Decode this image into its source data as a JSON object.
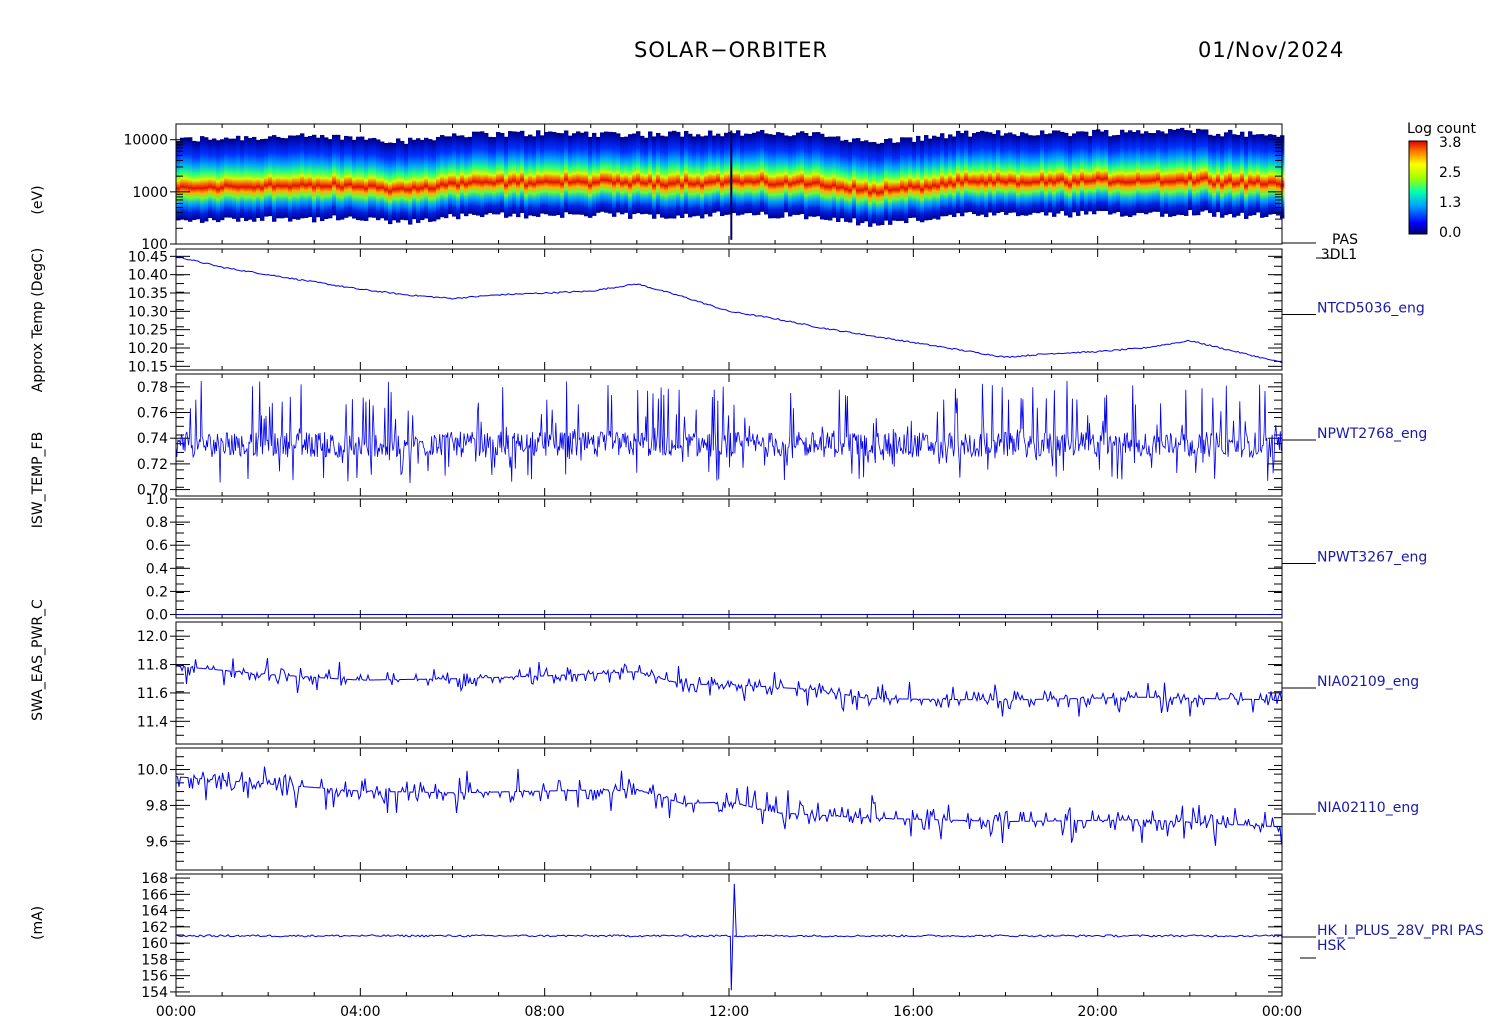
{
  "header": {
    "mission": "SOLAR−ORBITER",
    "date": "01/Nov/2024"
  },
  "chart_data": [
    {
      "type": "heatmap",
      "name": "PAS 3DL1",
      "label_lines": [
        "PAS",
        "3DL1"
      ],
      "y_scale": "log",
      "ylim": [
        100,
        20000
      ],
      "y_ticks": [
        {
          "v": 100,
          "label": "100"
        },
        {
          "v": 1000,
          "label": "1000"
        },
        {
          "v": 10000,
          "label": "10000"
        }
      ],
      "colorbar": {
        "title": "Log count",
        "min": 0.0,
        "max": 3.8,
        "ticks": [
          "3.8",
          "2.5",
          "1.3",
          "0.0"
        ]
      },
      "peak_energy_profile": [
        [
          0,
          1000
        ],
        [
          2,
          1150
        ],
        [
          4,
          1100
        ],
        [
          5,
          950
        ],
        [
          6,
          1250
        ],
        [
          8,
          1350
        ],
        [
          10,
          1300
        ],
        [
          12,
          1350
        ],
        [
          14,
          1250
        ],
        [
          15,
          880
        ],
        [
          16,
          1050
        ],
        [
          17,
          1300
        ],
        [
          20,
          1400
        ],
        [
          22,
          1500
        ],
        [
          24,
          1200
        ]
      ]
    },
    {
      "type": "line",
      "name": "NTCD5036_eng",
      "ylim": [
        10.14,
        10.47
      ],
      "y_ticks": [
        "10.45",
        "10.40",
        "10.35",
        "10.30",
        "10.25",
        "10.20",
        "10.15"
      ],
      "x": [
        0,
        1,
        2,
        3,
        4,
        5,
        6,
        7,
        8,
        9,
        10,
        11,
        12,
        13,
        14,
        15,
        16,
        17,
        18,
        19,
        20,
        21,
        22,
        23,
        24
      ],
      "y": [
        10.45,
        10.42,
        10.4,
        10.38,
        10.36,
        10.345,
        10.335,
        10.345,
        10.35,
        10.355,
        10.375,
        10.34,
        10.3,
        10.28,
        10.255,
        10.235,
        10.215,
        10.195,
        10.175,
        10.185,
        10.19,
        10.2,
        10.22,
        10.19,
        10.16
      ]
    },
    {
      "type": "line",
      "name": "NPWT2768_eng",
      "ylim": [
        0.695,
        0.79
      ],
      "y_ticks": [
        "0.78",
        "0.76",
        "0.74",
        "0.72",
        "0.70"
      ],
      "mean": 0.735,
      "noise_range": [
        0.705,
        0.785
      ]
    },
    {
      "type": "line",
      "name": "NPWT3267_eng",
      "ylim": [
        -0.03,
        1.0
      ],
      "y_ticks": [
        "1.0",
        "0.8",
        "0.6",
        "0.4",
        "0.2",
        "0.0"
      ],
      "constant_value": 0.0
    },
    {
      "type": "line",
      "name": "NIA02109_eng",
      "ylim": [
        11.24,
        12.1
      ],
      "y_ticks": [
        "12.0",
        "11.8",
        "11.6",
        "11.4"
      ],
      "x": [
        0,
        2,
        4,
        6,
        8,
        10,
        11,
        12,
        14,
        15,
        18,
        21,
        24
      ],
      "y": [
        11.79,
        11.73,
        11.69,
        11.7,
        11.72,
        11.75,
        11.66,
        11.66,
        11.62,
        11.56,
        11.55,
        11.57,
        11.55
      ]
    },
    {
      "type": "line",
      "name": "NIA02110_eng",
      "ylim": [
        9.44,
        10.12
      ],
      "y_ticks": [
        "10.0",
        "9.8",
        "9.6"
      ],
      "x": [
        0,
        2,
        4,
        6,
        8,
        10,
        11,
        12,
        13,
        15,
        18,
        21,
        24
      ],
      "y": [
        9.96,
        9.92,
        9.88,
        9.87,
        9.88,
        9.89,
        9.81,
        9.82,
        9.76,
        9.73,
        9.71,
        9.72,
        9.68
      ]
    },
    {
      "type": "line",
      "name": "HK_I_PLUS_28V_PRI PAS HSK",
      "label_lines": [
        "HK_I_PLUS_28V_PRI PAS",
        "HSK"
      ],
      "ylim": [
        153.5,
        168.5
      ],
      "y_ticks": [
        "168",
        "166",
        "164",
        "162",
        "160",
        "158",
        "156",
        "154"
      ],
      "baseline": 160.9,
      "spike": {
        "time": 12.05,
        "min": 154.2,
        "max": 167.3
      }
    }
  ],
  "x_axis": {
    "range": [
      0,
      24
    ],
    "tick_labels": [
      "00:00",
      "04:00",
      "08:00",
      "12:00",
      "16:00",
      "20:00",
      "00:00"
    ]
  },
  "y_axis_overlay": [
    "(eV)",
    "Approx Temp (DegC)",
    "ISW_TEMP_FB",
    "SWA_EAS_PWR_C",
    "(mA)"
  ]
}
